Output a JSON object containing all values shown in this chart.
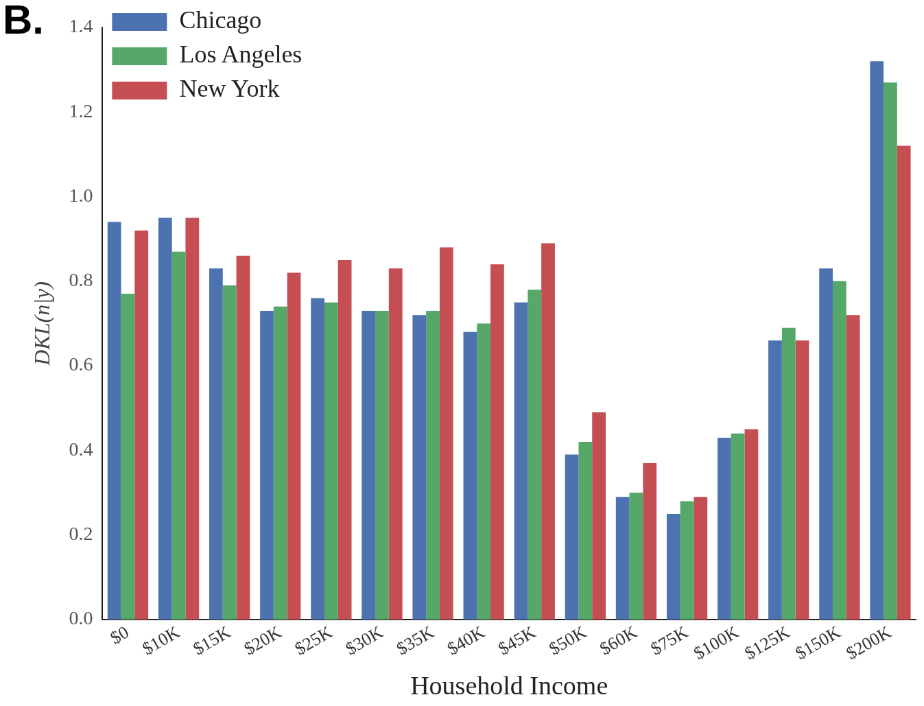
{
  "chart_data": {
    "type": "bar",
    "xlabel": "Household Income",
    "ylabel": "DKL(n|y)",
    "categories": [
      "$0",
      "$10K",
      "$15K",
      "$20K",
      "$25K",
      "$30K",
      "$35K",
      "$40K",
      "$45K",
      "$50K",
      "$60K",
      "$75K",
      "$100K",
      "$125K",
      "$150K",
      "$200K"
    ],
    "series": [
      {
        "name": "Chicago",
        "color": "#4c72b0",
        "values": [
          0.94,
          0.95,
          0.83,
          0.73,
          0.76,
          0.73,
          0.72,
          0.68,
          0.75,
          0.39,
          0.29,
          0.25,
          0.43,
          0.66,
          0.83,
          1.32
        ]
      },
      {
        "name": "Los Angeles",
        "color": "#55a868",
        "values": [
          0.77,
          0.87,
          0.79,
          0.74,
          0.75,
          0.73,
          0.73,
          0.7,
          0.78,
          0.42,
          0.3,
          0.28,
          0.44,
          0.69,
          0.8,
          1.27
        ]
      },
      {
        "name": "New York",
        "color": "#c44e52",
        "values": [
          0.92,
          0.95,
          0.86,
          0.82,
          0.85,
          0.83,
          0.88,
          0.84,
          0.89,
          0.49,
          0.37,
          0.29,
          0.45,
          0.66,
          0.72,
          1.12
        ]
      }
    ],
    "ylim": [
      0,
      1.4
    ],
    "yticks": [
      {
        "value": 0,
        "label": "0.0"
      },
      {
        "value": 0.2,
        "label": "0.2"
      },
      {
        "value": 0.4,
        "label": "0.4"
      },
      {
        "value": 0.6,
        "label": "0.6"
      },
      {
        "value": 0.8,
        "label": "0.8"
      },
      {
        "value": 1,
        "label": "1.0"
      },
      {
        "value": 1.2,
        "label": "1.2"
      },
      {
        "value": 1.4,
        "label": "1.4"
      }
    ],
    "grid": false,
    "legend": "top left",
    "annotations": [
      "B."
    ]
  }
}
